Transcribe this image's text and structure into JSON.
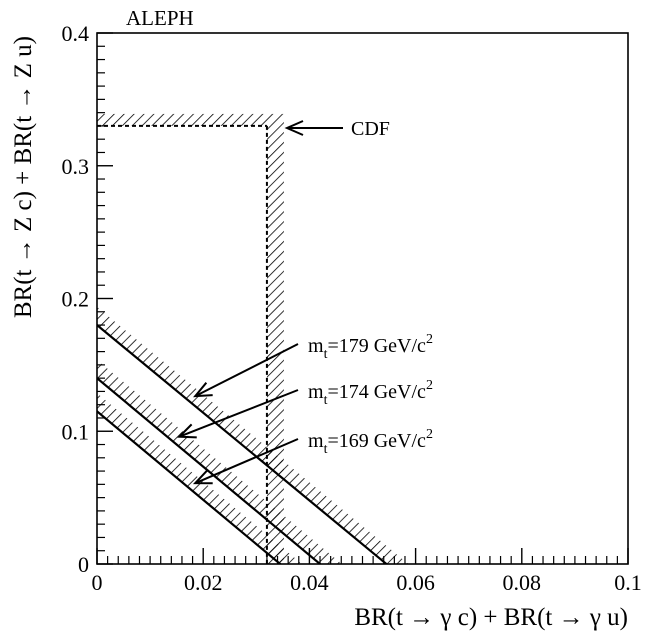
{
  "chart_data": {
    "type": "line",
    "title": "",
    "experiment_label": "ALEPH",
    "xlabel": "BR(t → γ c) + BR(t → γ u)",
    "ylabel": "BR(t → Z c) + BR(t → Z u)",
    "xlim": [
      0,
      0.1
    ],
    "ylim": [
      0,
      0.4
    ],
    "x_ticks": [
      0,
      0.02,
      0.04,
      0.06,
      0.08,
      0.1
    ],
    "x_tick_labels": [
      "0",
      "0.02",
      "0.04",
      "0.06",
      "0.08",
      "0.1"
    ],
    "y_ticks": [
      0,
      0.1,
      0.2,
      0.3,
      0.4
    ],
    "y_tick_labels": [
      "0",
      "0.1",
      "0.2",
      "0.3",
      "0.4"
    ],
    "grid": false,
    "legend": "none",
    "series": [
      {
        "name": "m_t=179 GeV/c^2",
        "x": [
          0,
          0.0545
        ],
        "y": [
          0.18,
          0
        ],
        "hatched_side": "above"
      },
      {
        "name": "m_t=174 GeV/c^2",
        "x": [
          0,
          0.042
        ],
        "y": [
          0.14,
          0
        ],
        "hatched_side": "above"
      },
      {
        "name": "m_t=169 GeV/c^2",
        "x": [
          0,
          0.0345
        ],
        "y": [
          0.115,
          0
        ],
        "hatched_side": "above"
      }
    ],
    "cdf_limit": {
      "label": "CDF",
      "br_gamma_limit": 0.032,
      "br_z_limit": 0.33,
      "hatched_side": "above/right"
    },
    "annotations": [
      {
        "text": "m",
        "sub": "t",
        "value": "=179 GeV/c",
        "sup": "2",
        "points_to_series": 0
      },
      {
        "text": "m",
        "sub": "t",
        "value": "=174 GeV/c",
        "sup": "2",
        "points_to_series": 1
      },
      {
        "text": "m",
        "sub": "t",
        "value": "=169 GeV/c",
        "sup": "2",
        "points_to_series": 2
      }
    ]
  }
}
